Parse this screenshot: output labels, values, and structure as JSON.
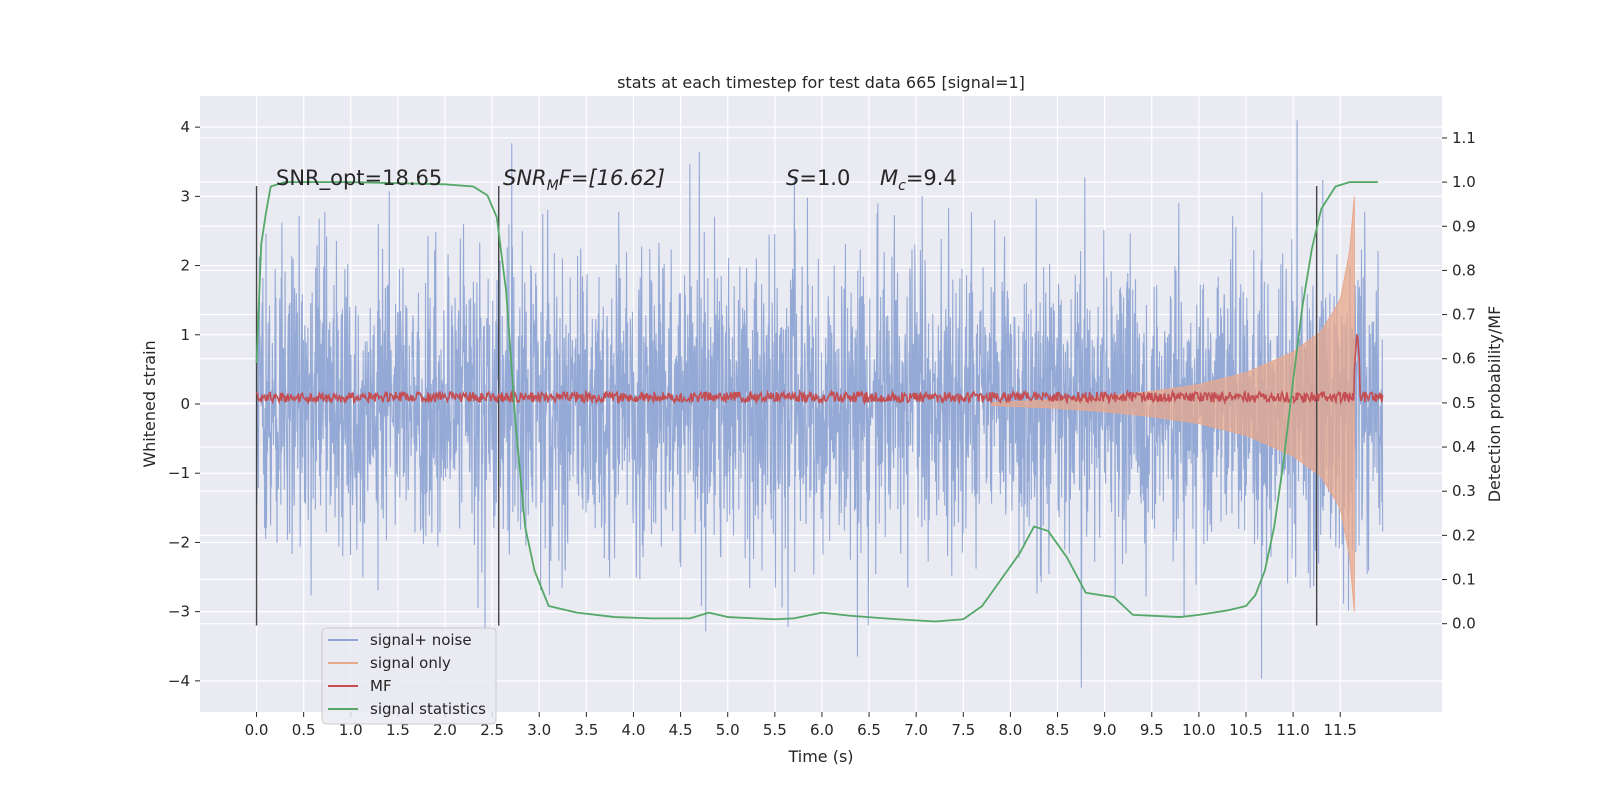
{
  "chart_data": {
    "type": "line",
    "title": "stats at each timestep for test data 665 [signal=1]",
    "xlabel": "Time (s)",
    "ylabel_left": "Whitened strain",
    "ylabel_right": "Detection probability/MF",
    "xlim": [
      -0.6,
      12.58
    ],
    "ylim_left": [
      -4.45,
      4.45
    ],
    "ylim_right": [
      -0.2,
      1.195
    ],
    "x_ticks": [
      0.0,
      0.5,
      1.0,
      1.5,
      2.0,
      2.5,
      3.0,
      3.5,
      4.0,
      4.5,
      5.0,
      5.5,
      6.0,
      6.5,
      7.0,
      7.5,
      8.0,
      8.5,
      9.0,
      9.5,
      10.0,
      10.5,
      11.0,
      11.5
    ],
    "x_tick_labels": [
      "0.0",
      "0.5",
      "1.0",
      "1.5",
      "2.0",
      "2.5",
      "3.0",
      "3.5",
      "4.0",
      "4.5",
      "5.0",
      "5.5",
      "6.0",
      "6.5",
      "7.0",
      "7.5",
      "8.0",
      "8.5",
      "9.0",
      "9.5",
      "10.0",
      "10.5",
      "11.0",
      "11.5"
    ],
    "y_left_ticks": [
      4,
      3,
      2,
      1,
      0,
      -1,
      -2,
      -3,
      -4
    ],
    "y_left_tick_labels": [
      "4",
      "3",
      "2",
      "1",
      "0",
      "−1",
      "−2",
      "−3",
      "−4"
    ],
    "y_right_ticks": [
      1.1,
      1.0,
      0.9,
      0.8,
      0.7,
      0.6,
      0.5,
      0.4,
      0.3,
      0.2,
      0.1,
      0.0
    ],
    "y_right_tick_labels": [
      "1.1",
      "1.0",
      "0.9",
      "0.8",
      "0.7",
      "0.6",
      "0.5",
      "0.4",
      "0.3",
      "0.2",
      "0.1",
      "0.0"
    ],
    "grid": true,
    "legend_position": "lower-left",
    "annotations": {
      "snr_opt": "SNR_opt=18.65",
      "snr_mf_base": "SNR",
      "snr_mf_sub": "M",
      "snr_mf_rest": "F=[16.62]",
      "s_var": "S",
      "s_val": "=1.0",
      "mc_var": "M",
      "mc_sub": "c",
      "mc_val": "=9.4"
    },
    "vertical_markers": [
      0.0,
      2.57,
      11.25
    ],
    "series": [
      {
        "name": "signal+ noise",
        "color": "#8fa5d3",
        "axis": "left",
        "x_range": [
          0.0,
          11.95
        ],
        "noise_envelope": 2.0
      },
      {
        "name": "signal only",
        "color": "#e8a88c",
        "axis": "left",
        "x_range": [
          7.8,
          11.65
        ],
        "amplitude_points": [
          [
            7.8,
            0.02
          ],
          [
            8.5,
            0.06
          ],
          [
            9.0,
            0.11
          ],
          [
            9.5,
            0.18
          ],
          [
            10.0,
            0.28
          ],
          [
            10.5,
            0.45
          ],
          [
            11.0,
            0.75
          ],
          [
            11.3,
            1.05
          ],
          [
            11.5,
            1.5
          ],
          [
            11.6,
            2.2
          ],
          [
            11.65,
            3.0
          ]
        ]
      },
      {
        "name": "MF",
        "color": "#c44e52",
        "axis": "right",
        "baseline": 0.513,
        "jitter": 0.012,
        "peak": [
          11.68,
          0.665
        ]
      },
      {
        "name": "signal statistics",
        "color": "#55a868",
        "axis": "right",
        "x": [
          0.0,
          0.05,
          0.1,
          0.15,
          0.3,
          1.0,
          2.0,
          2.3,
          2.45,
          2.55,
          2.65,
          2.75,
          2.85,
          2.95,
          3.1,
          3.4,
          3.8,
          4.2,
          4.6,
          4.8,
          5.0,
          5.5,
          5.7,
          6.0,
          6.3,
          6.8,
          7.2,
          7.5,
          7.7,
          7.9,
          8.1,
          8.25,
          8.4,
          8.6,
          8.8,
          9.1,
          9.3,
          9.8,
          10.0,
          10.3,
          10.5,
          10.6,
          10.7,
          10.8,
          10.9,
          11.0,
          11.1,
          11.2,
          11.3,
          11.45,
          11.6,
          11.9
        ],
        "y": [
          0.59,
          0.86,
          0.93,
          0.99,
          1.0,
          1.0,
          0.995,
          0.99,
          0.97,
          0.92,
          0.75,
          0.45,
          0.22,
          0.12,
          0.04,
          0.025,
          0.015,
          0.012,
          0.012,
          0.025,
          0.015,
          0.01,
          0.012,
          0.025,
          0.018,
          0.01,
          0.005,
          0.01,
          0.04,
          0.1,
          0.16,
          0.22,
          0.21,
          0.15,
          0.07,
          0.06,
          0.02,
          0.015,
          0.02,
          0.03,
          0.04,
          0.065,
          0.12,
          0.22,
          0.37,
          0.55,
          0.72,
          0.85,
          0.94,
          0.99,
          1.0,
          1.0
        ]
      }
    ]
  }
}
